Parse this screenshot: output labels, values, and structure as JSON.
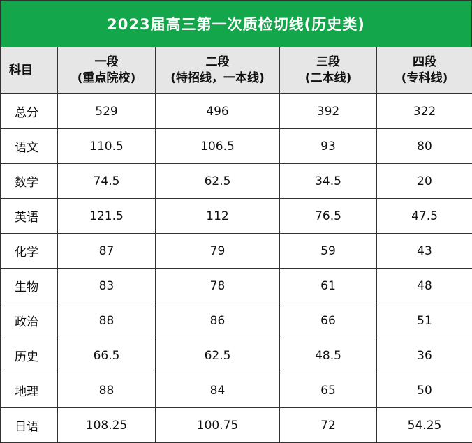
{
  "title": "2023届高三第一次质检切线(历史类)",
  "headers": {
    "subject": "科目",
    "columns": [
      {
        "line1": "一段",
        "line2": "(重点院校)"
      },
      {
        "line1": "二段",
        "line2": "(特招线，一本线)"
      },
      {
        "line1": "三段",
        "line2": "(二本线)"
      },
      {
        "line1": "四段",
        "line2": "(专科线)"
      }
    ]
  },
  "rows": [
    {
      "subject": "总分",
      "values": [
        "529",
        "496",
        "392",
        "322"
      ]
    },
    {
      "subject": "语文",
      "values": [
        "110.5",
        "106.5",
        "93",
        "80"
      ]
    },
    {
      "subject": "数学",
      "values": [
        "74.5",
        "62.5",
        "34.5",
        "20"
      ]
    },
    {
      "subject": "英语",
      "values": [
        "121.5",
        "112",
        "76.5",
        "47.5"
      ]
    },
    {
      "subject": "化学",
      "values": [
        "87",
        "79",
        "59",
        "43"
      ]
    },
    {
      "subject": "生物",
      "values": [
        "83",
        "78",
        "61",
        "48"
      ]
    },
    {
      "subject": "政治",
      "values": [
        "88",
        "86",
        "66",
        "51"
      ]
    },
    {
      "subject": "历史",
      "values": [
        "66.5",
        "62.5",
        "48.5",
        "36"
      ]
    },
    {
      "subject": "地理",
      "values": [
        "88",
        "84",
        "65",
        "50"
      ]
    },
    {
      "subject": "日语",
      "values": [
        "108.25",
        "100.75",
        "72",
        "54.25"
      ]
    }
  ],
  "colors": {
    "title_background": "#13a64b",
    "title_text": "#ffffff",
    "header_background": "#e6e6e6",
    "border": "#333333"
  }
}
